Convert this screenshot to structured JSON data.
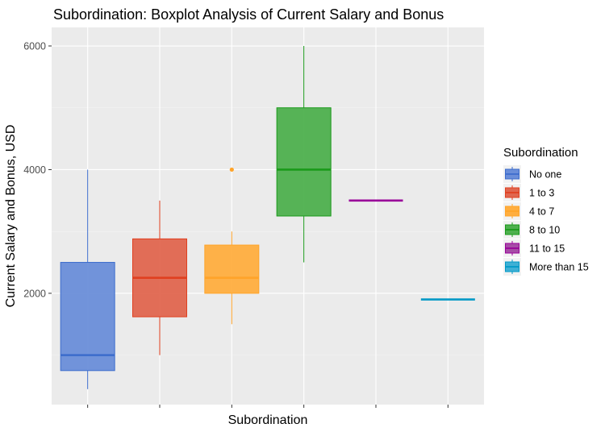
{
  "chart_data": {
    "type": "boxplot",
    "title": "Subordination: Boxplot Analysis of Current Salary and Bonus",
    "xlabel": "Subordination",
    "ylabel": "Current Salary and Bonus, USD",
    "ylim": [
      200,
      6300
    ],
    "yticks": [
      2000,
      4000,
      6000
    ],
    "grid": true,
    "legend": {
      "title": "Subordination",
      "position": "right"
    },
    "series": [
      {
        "name": "No one",
        "color": "#3c6ccc",
        "fill": "#6a8ed9",
        "min": 450,
        "q1": 750,
        "median": 1000,
        "q3": 2500,
        "max": 4000,
        "outliers": []
      },
      {
        "name": "1 to 3",
        "color": "#e04020",
        "fill": "#e0664f",
        "min": 1000,
        "q1": 1620,
        "median": 2250,
        "q3": 2880,
        "max": 3500,
        "outliers": []
      },
      {
        "name": "4 to 7",
        "color": "#ffa42a",
        "fill": "#ffae3f",
        "min": 1500,
        "q1": 2000,
        "median": 2250,
        "q3": 2780,
        "max": 3000,
        "outliers": [
          4000
        ]
      },
      {
        "name": "8 to 10",
        "color": "#1a9a1a",
        "fill": "#4eb04e",
        "min": 2500,
        "q1": 3250,
        "median": 4000,
        "q3": 5000,
        "max": 6000,
        "outliers": []
      },
      {
        "name": "11 to 15",
        "color": "#990099",
        "fill": "#a64da6",
        "min": 3500,
        "q1": 3500,
        "median": 3500,
        "q3": 3500,
        "max": 3500,
        "outliers": []
      },
      {
        "name": "More than 15",
        "color": "#0099c6",
        "fill": "#3fb0d5",
        "min": 1900,
        "q1": 1900,
        "median": 1900,
        "q3": 1900,
        "max": 1900,
        "outliers": []
      }
    ]
  }
}
